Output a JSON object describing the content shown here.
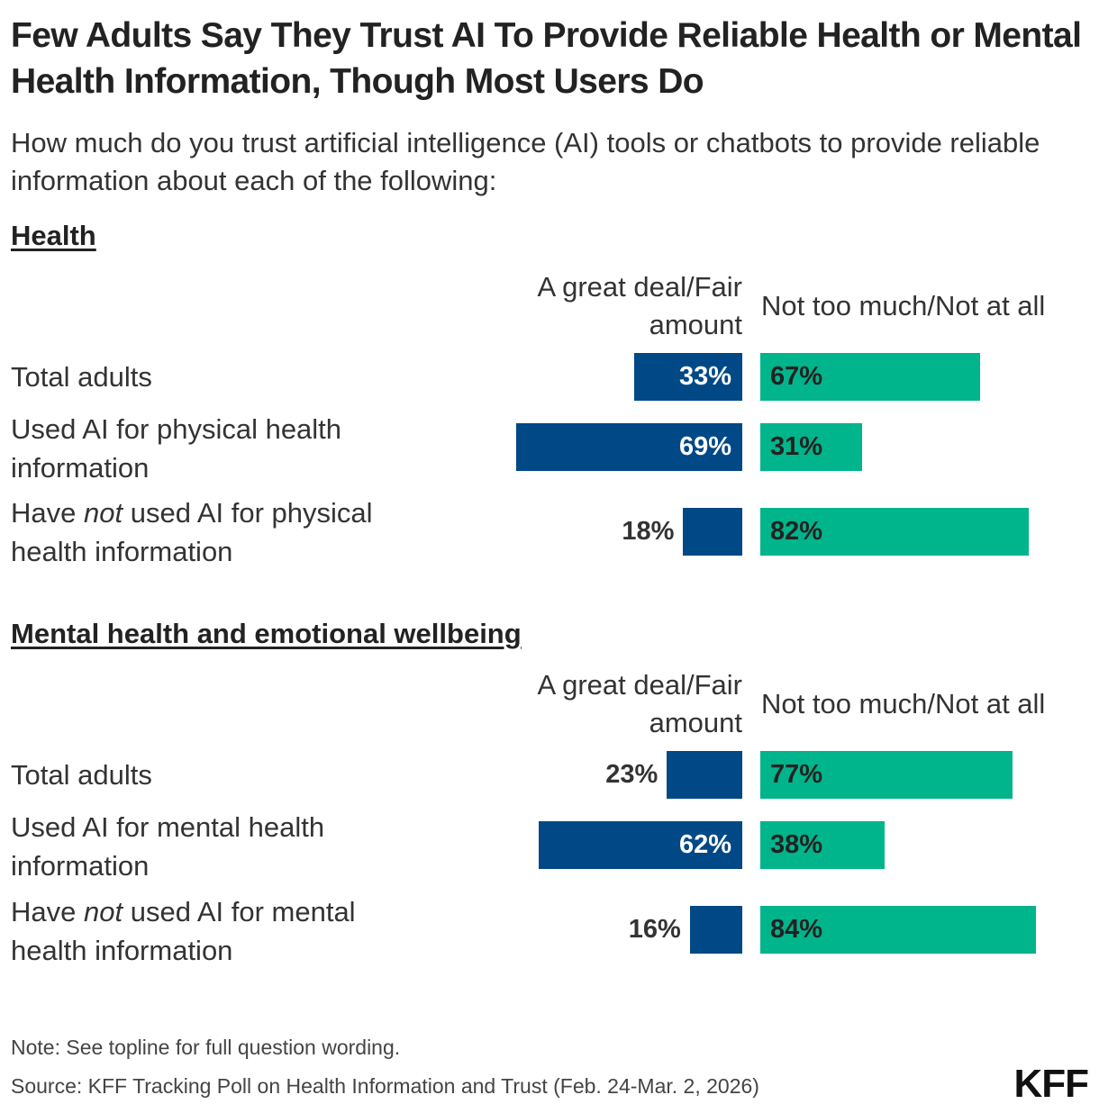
{
  "title": "Few Adults Say They Trust AI To Provide Reliable Health or Mental Health Information, Though Most Users Do",
  "subtitle": "How much do you trust artificial intelligence (AI) tools or chatbots to provide reliable information about each of the following:",
  "colors": {
    "trust": "#004886",
    "distrust": "#00b48b"
  },
  "chart_data": [
    {
      "type": "bar",
      "title": "Health",
      "orientation": "horizontal diverging",
      "series_labels": {
        "trust": "A great deal/Fair amount",
        "distrust": "Not too much/Not at all"
      },
      "categories": [
        {
          "label": "Total adults",
          "pre": "",
          "em": "",
          "post": ""
        },
        {
          "label": "Used AI for physical health information",
          "pre": "",
          "em": "",
          "post": ""
        },
        {
          "label": "",
          "pre": "Have ",
          "em": "not",
          "post": " used AI for physical health information"
        }
      ],
      "series": [
        {
          "name": "A great deal/Fair amount",
          "values": [
            33,
            69,
            18
          ]
        },
        {
          "name": "Not too much/Not at all",
          "values": [
            67,
            31,
            82
          ]
        }
      ],
      "value_labels": {
        "trust": [
          "33%",
          "69%",
          "18%"
        ],
        "distrust": [
          "67%",
          "31%",
          "82%"
        ]
      }
    },
    {
      "type": "bar",
      "title": "Mental health and emotional wellbeing",
      "orientation": "horizontal diverging",
      "series_labels": {
        "trust": "A great deal/Fair amount",
        "distrust": "Not too much/Not at all"
      },
      "categories": [
        {
          "label": "Total adults",
          "pre": "",
          "em": "",
          "post": ""
        },
        {
          "label": "Used AI for mental health information",
          "pre": "",
          "em": "",
          "post": ""
        },
        {
          "label": "",
          "pre": "Have ",
          "em": "not",
          "post": " used AI for mental health information"
        }
      ],
      "series": [
        {
          "name": "A great deal/Fair amount",
          "values": [
            23,
            62,
            16
          ]
        },
        {
          "name": "Not too much/Not at all",
          "values": [
            77,
            38,
            84
          ]
        }
      ],
      "value_labels": {
        "trust": [
          "23%",
          "62%",
          "16%"
        ],
        "distrust": [
          "77%",
          "38%",
          "84%"
        ]
      }
    }
  ],
  "note": "Note: See topline for full question wording.",
  "source": "Source: KFF Tracking Poll on Health Information and Trust (Feb. 24-Mar. 2, 2026)",
  "logo": "KFF"
}
